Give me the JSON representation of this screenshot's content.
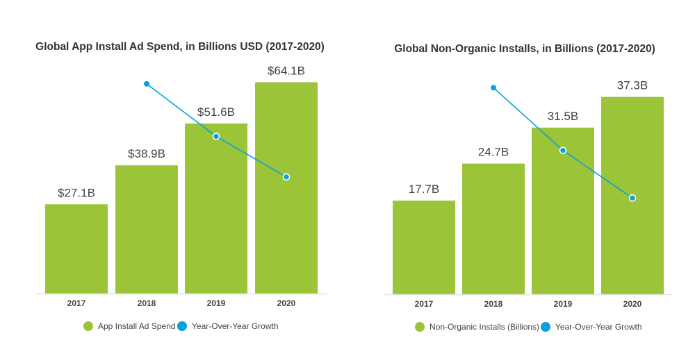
{
  "chart_data": [
    {
      "type": "bar",
      "title": "Global App Install Ad Spend, in Billions USD (2017-2020)",
      "categories": [
        "2017",
        "2018",
        "2019",
        "2020"
      ],
      "ylim": [
        0,
        68
      ],
      "y2lim": [
        0,
        46.5
      ],
      "grid": false,
      "legend": "bottom",
      "series": [
        {
          "name": "App Install Ad Spend",
          "kind": "bar",
          "color": "#9bc438",
          "values": [
            27.1,
            38.9,
            51.6,
            64.1
          ],
          "labels": [
            "$27.1B",
            "$38.9B",
            "$51.6B",
            "$64.1B"
          ]
        },
        {
          "name": "Year-Over-Year Growth",
          "kind": "line",
          "axis": "secondary",
          "unit": "%",
          "color": "#0aa0dc",
          "values": [
            null,
            43.5,
            32.6,
            24.2
          ]
        }
      ]
    },
    {
      "type": "bar",
      "title": "Global Non-Organic Installs, in Billions (2017-2020)",
      "categories": [
        "2017",
        "2018",
        "2019",
        "2020"
      ],
      "ylim": [
        0,
        42.5
      ],
      "y2lim": [
        0,
        43
      ],
      "grid": false,
      "legend": "bottom",
      "series": [
        {
          "name": "Non-Organic Installs (Billions)",
          "kind": "bar",
          "color": "#9bc438",
          "values": [
            17.7,
            24.7,
            31.5,
            37.3
          ],
          "labels": [
            "17.7B",
            "24.7B",
            "31.5B",
            "37.3B"
          ]
        },
        {
          "name": "Year-Over-Year Growth",
          "kind": "line",
          "axis": "secondary",
          "unit": "%",
          "color": "#0aa0dc",
          "values": [
            null,
            39.5,
            27.5,
            18.4
          ]
        }
      ]
    }
  ]
}
